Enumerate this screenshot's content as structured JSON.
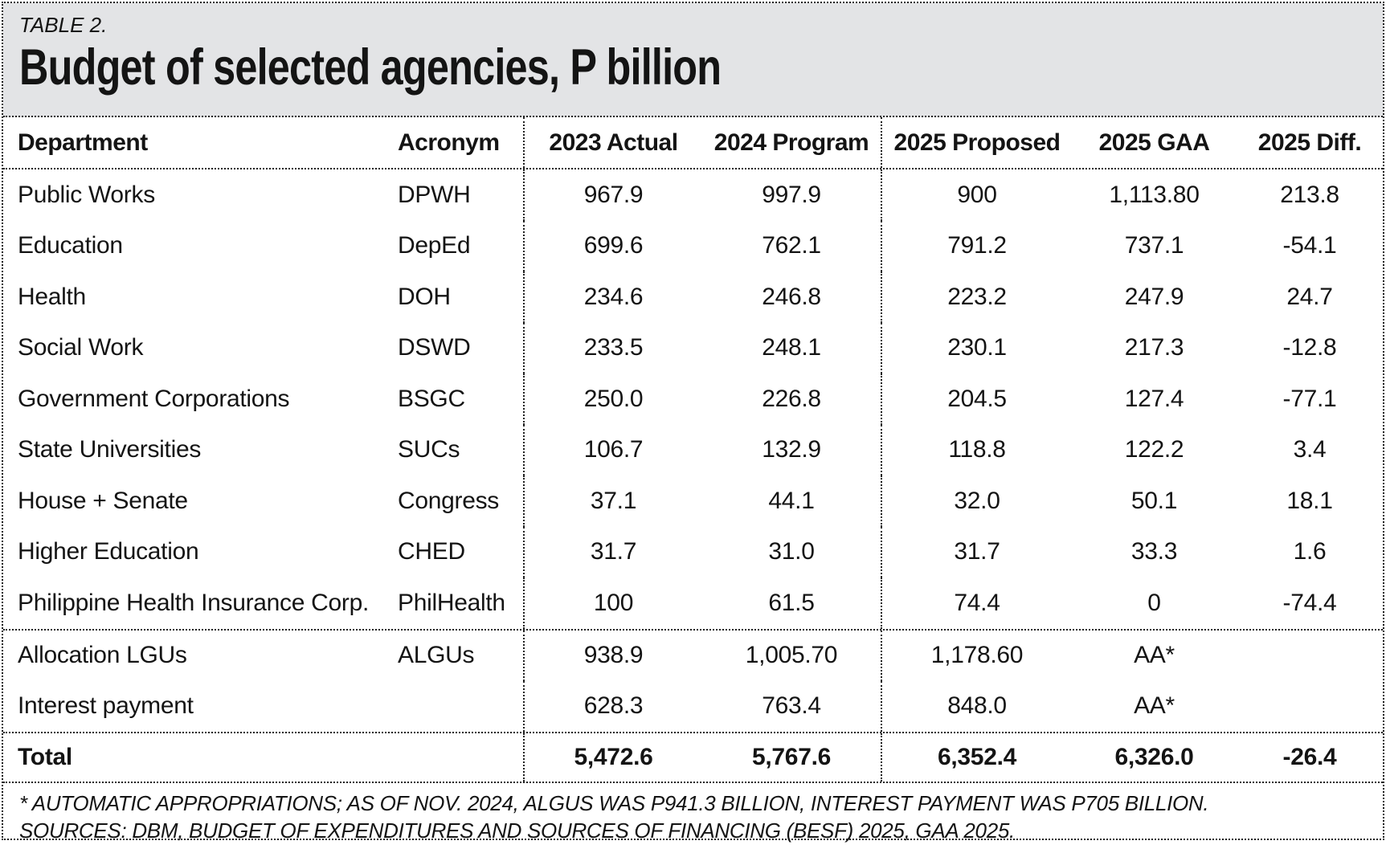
{
  "colors": {
    "title_band_bg": "#e3e4e6",
    "text": "#141414",
    "border": "#222222",
    "background": "#ffffff"
  },
  "chart_data": {
    "type": "table",
    "table_label": "TABLE 2.",
    "title": "Budget of selected agencies, P billion",
    "columns": [
      "Department",
      "Acronym",
      "2023 Actual",
      "2024 Program",
      "2025 Proposed",
      "2025 GAA",
      "2025 Diff."
    ],
    "rows": [
      [
        "Public Works",
        "DPWH",
        "967.9",
        "997.9",
        "900",
        "1,113.80",
        "213.8"
      ],
      [
        "Education",
        "DepEd",
        "699.6",
        "762.1",
        "791.2",
        "737.1",
        "-54.1"
      ],
      [
        "Health",
        "DOH",
        "234.6",
        "246.8",
        "223.2",
        "247.9",
        "24.7"
      ],
      [
        "Social Work",
        "DSWD",
        "233.5",
        "248.1",
        "230.1",
        "217.3",
        "-12.8"
      ],
      [
        "Government Corporations",
        "BSGC",
        "250.0",
        "226.8",
        "204.5",
        "127.4",
        "-77.1"
      ],
      [
        "State Universities",
        "SUCs",
        "106.7",
        "132.9",
        "118.8",
        "122.2",
        "3.4"
      ],
      [
        "House + Senate",
        "Congress",
        "37.1",
        "44.1",
        "32.0",
        "50.1",
        "18.1"
      ],
      [
        "Higher Education",
        "CHED",
        "31.7",
        "31.0",
        "31.7",
        "33.3",
        "1.6"
      ],
      [
        "Philippine Health Insurance Corp.",
        "PhilHealth",
        "100",
        "61.5",
        "74.4",
        "0",
        "-74.4"
      ]
    ],
    "aa_rows": [
      [
        "Allocation LGUs",
        "ALGUs",
        "938.9",
        "1,005.70",
        "1,178.60",
        "AA*",
        ""
      ],
      [
        "Interest payment",
        "",
        "628.3",
        "763.4",
        "848.0",
        "AA*",
        ""
      ]
    ],
    "total_row": [
      "Total",
      "",
      "5,472.6",
      "5,767.6",
      "6,352.4",
      "6,326.0",
      "-26.4"
    ],
    "footnotes": [
      "* AUTOMATIC APPROPRIATIONS; AS OF NOV. 2024, ALGUS WAS P941.3 BILLION, INTEREST PAYMENT WAS P705 BILLION.",
      "SOURCES: DBM, BUDGET OF EXPENDITURES AND SOURCES OF FINANCING (BESF) 2025, GAA 2025."
    ]
  }
}
